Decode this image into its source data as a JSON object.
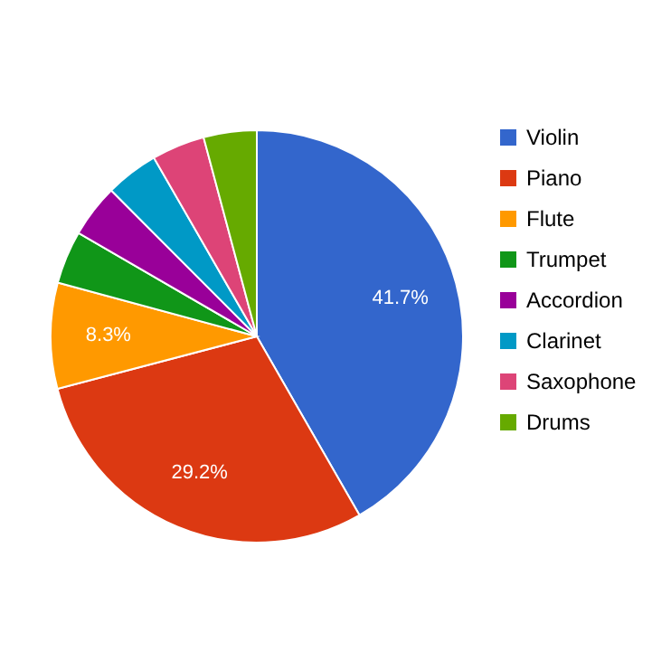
{
  "chart_data": {
    "type": "pie",
    "categories": [
      "Violin",
      "Piano",
      "Flute",
      "Trumpet",
      "Accordion",
      "Clarinet",
      "Saxophone",
      "Drums"
    ],
    "values": [
      41.7,
      29.2,
      8.3,
      4.16,
      4.16,
      4.16,
      4.16,
      4.16
    ],
    "colors": [
      "#3366cc",
      "#dc3912",
      "#ff9900",
      "#109618",
      "#990099",
      "#0099c6",
      "#dd4477",
      "#66aa00"
    ],
    "value_labels": [
      "41.7%",
      "29.2%",
      "8.3%",
      null,
      null,
      null,
      null,
      null
    ],
    "legend": "right"
  }
}
